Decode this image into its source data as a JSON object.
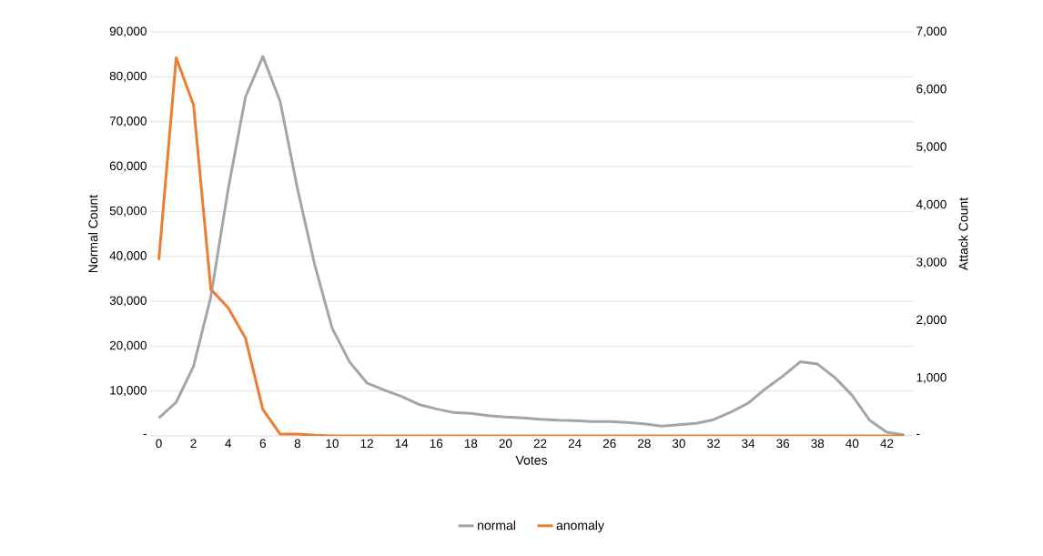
{
  "chart_data": {
    "type": "line",
    "xlabel": "Votes",
    "ylabel": "Normal Count",
    "y2label": "Attack Count",
    "categories": [
      "0",
      null,
      "2",
      null,
      "4",
      null,
      "6",
      null,
      "8",
      null,
      "10",
      null,
      "12",
      null,
      "14",
      null,
      "16",
      null,
      "18",
      null,
      "20",
      null,
      "22",
      null,
      "24",
      null,
      "26",
      null,
      "28",
      null,
      "30",
      null,
      "32",
      null,
      "34",
      null,
      "36",
      null,
      "38",
      null,
      "40",
      null,
      "42",
      null
    ],
    "series": [
      {
        "name": "normal",
        "color": "#a5a5a5",
        "values": [
          4000,
          7500,
          15500,
          31000,
          55000,
          75500,
          84500,
          74500,
          55000,
          38000,
          24000,
          16500,
          11800,
          10200,
          8800,
          7000,
          6000,
          5200,
          5000,
          4500,
          4200,
          4000,
          3700,
          3500,
          3400,
          3200,
          3200,
          3000,
          2700,
          2200,
          2500,
          2800,
          3600,
          5300,
          7300,
          10500,
          13300,
          16500,
          16000,
          13000,
          9000,
          3500,
          800,
          200
        ]
      },
      {
        "name": "anomaly",
        "color": "#ed7d31",
        "axis": "y2",
        "values": [
          3050,
          6550,
          5740,
          2540,
          2220,
          1690,
          460,
          30,
          30,
          10,
          0,
          0,
          0,
          0,
          0,
          0,
          0,
          0,
          0,
          0,
          0,
          0,
          0,
          0,
          0,
          0,
          0,
          0,
          0,
          0,
          0,
          0,
          0,
          0,
          0,
          0,
          0,
          0,
          0,
          0,
          0,
          0,
          0,
          0
        ]
      }
    ],
    "ylim": [
      0,
      90000
    ],
    "yticks": [
      {
        "value": 0,
        "label": "-"
      },
      {
        "value": 10000,
        "label": "10,000"
      },
      {
        "value": 20000,
        "label": "20,000"
      },
      {
        "value": 30000,
        "label": "30,000"
      },
      {
        "value": 40000,
        "label": "40,000"
      },
      {
        "value": 50000,
        "label": "50,000"
      },
      {
        "value": 60000,
        "label": "60,000"
      },
      {
        "value": 70000,
        "label": "70,000"
      },
      {
        "value": 80000,
        "label": "80,000"
      },
      {
        "value": 90000,
        "label": "90,000"
      }
    ],
    "y2lim": [
      0,
      7000
    ],
    "y2ticks": [
      {
        "value": 0,
        "label": "-"
      },
      {
        "value": 1000,
        "label": "1,000"
      },
      {
        "value": 2000,
        "label": "2,000"
      },
      {
        "value": 3000,
        "label": "3,000"
      },
      {
        "value": 4000,
        "label": "4,000"
      },
      {
        "value": 5000,
        "label": "5,000"
      },
      {
        "value": 6000,
        "label": "6,000"
      },
      {
        "value": 7000,
        "label": "7,000"
      }
    ],
    "grid": "y",
    "legend": "bottom",
    "marker": "none",
    "line_style": "solid"
  }
}
